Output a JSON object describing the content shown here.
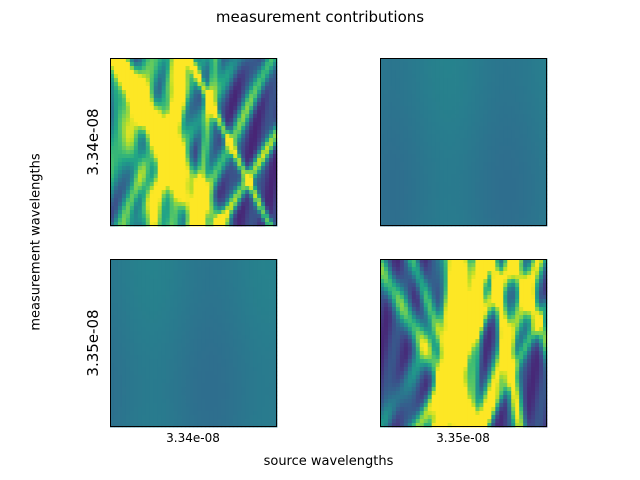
{
  "chart_data": {
    "type": "heatmap",
    "title": "measurement contributions",
    "xlabel": "source wavelengths",
    "ylabel": "measurement wavelengths",
    "column_ticks": [
      "3.34e-08",
      "3.35e-08"
    ],
    "row_ticks": [
      "3.34e-08",
      "3.35e-08"
    ],
    "colormap": "viridis",
    "panels": [
      {
        "row": 0,
        "col": 0,
        "pattern": "interference-streaks",
        "level": 0.3,
        "contrast": 1.0,
        "seed": 11
      },
      {
        "row": 0,
        "col": 1,
        "pattern": "near-uniform",
        "level": 0.4,
        "contrast": 0.05,
        "seed": 23
      },
      {
        "row": 1,
        "col": 0,
        "pattern": "near-uniform",
        "level": 0.4,
        "contrast": 0.05,
        "seed": 37
      },
      {
        "row": 1,
        "col": 1,
        "pattern": "interference-streaks",
        "level": 0.32,
        "contrast": 1.0,
        "seed": 51
      }
    ]
  },
  "colors": {
    "frame": "#000000",
    "uniform_fill": "#31688e"
  }
}
